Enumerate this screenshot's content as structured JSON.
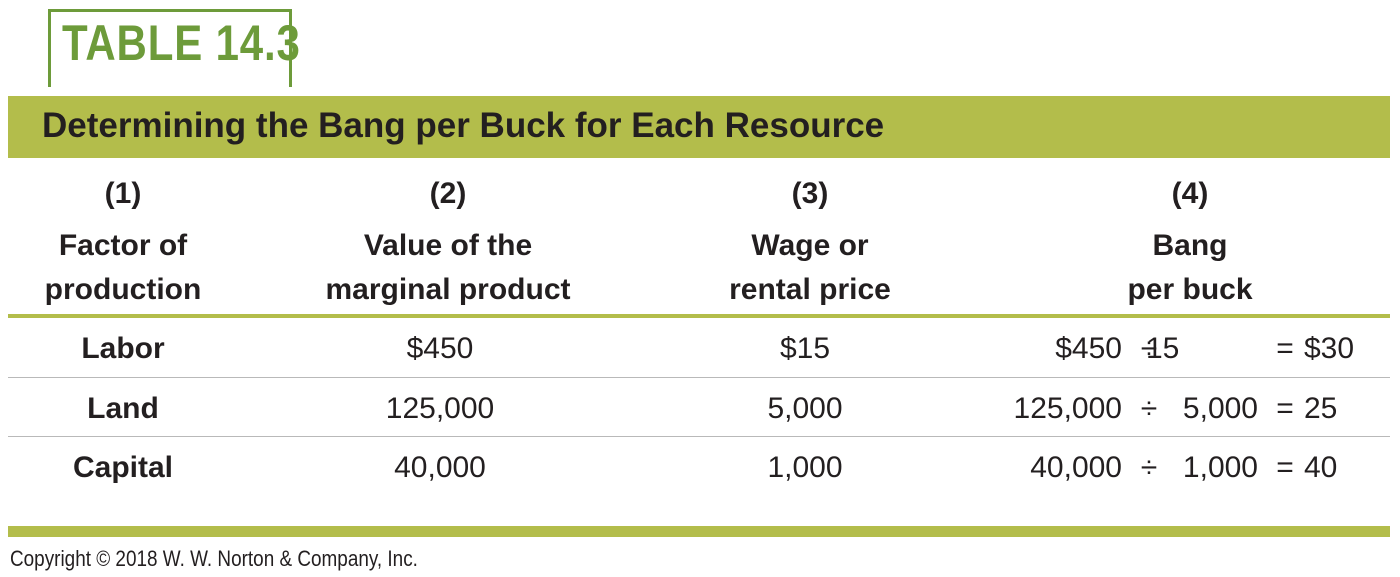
{
  "table_label": "TABLE 14.3",
  "title": "Determining the Bang per Buck for Each Resource",
  "columns": [
    {
      "number": "(1)",
      "line1": "Factor of",
      "line2": "production"
    },
    {
      "number": "(2)",
      "line1": "Value of the",
      "line2": "marginal product"
    },
    {
      "number": "(3)",
      "line1": "Wage or",
      "line2": "rental price"
    },
    {
      "number": "(4)",
      "line1": "Bang",
      "line2": "per buck"
    }
  ],
  "rows": [
    {
      "factor": "Labor",
      "vmp": "$450",
      "price": "$15",
      "calc_a": "$450",
      "div": "÷",
      "calc_b": "15",
      "eq": "=",
      "result": "$30"
    },
    {
      "factor": "Land",
      "vmp": "125,000",
      "price": "5,000",
      "calc_a": "125,000",
      "div": "÷",
      "calc_b": "5,000",
      "eq": "=",
      "result": "25"
    },
    {
      "factor": "Capital",
      "vmp": "40,000",
      "price": "1,000",
      "calc_a": "40,000",
      "div": "÷",
      "calc_b": "1,000",
      "eq": "=",
      "result": "40"
    }
  ],
  "copyright": "Copyright © 2018 W. W. Norton & Company, Inc.",
  "colors": {
    "accent_green": "#6d9b3a",
    "band_olive": "#b3bd4b"
  }
}
